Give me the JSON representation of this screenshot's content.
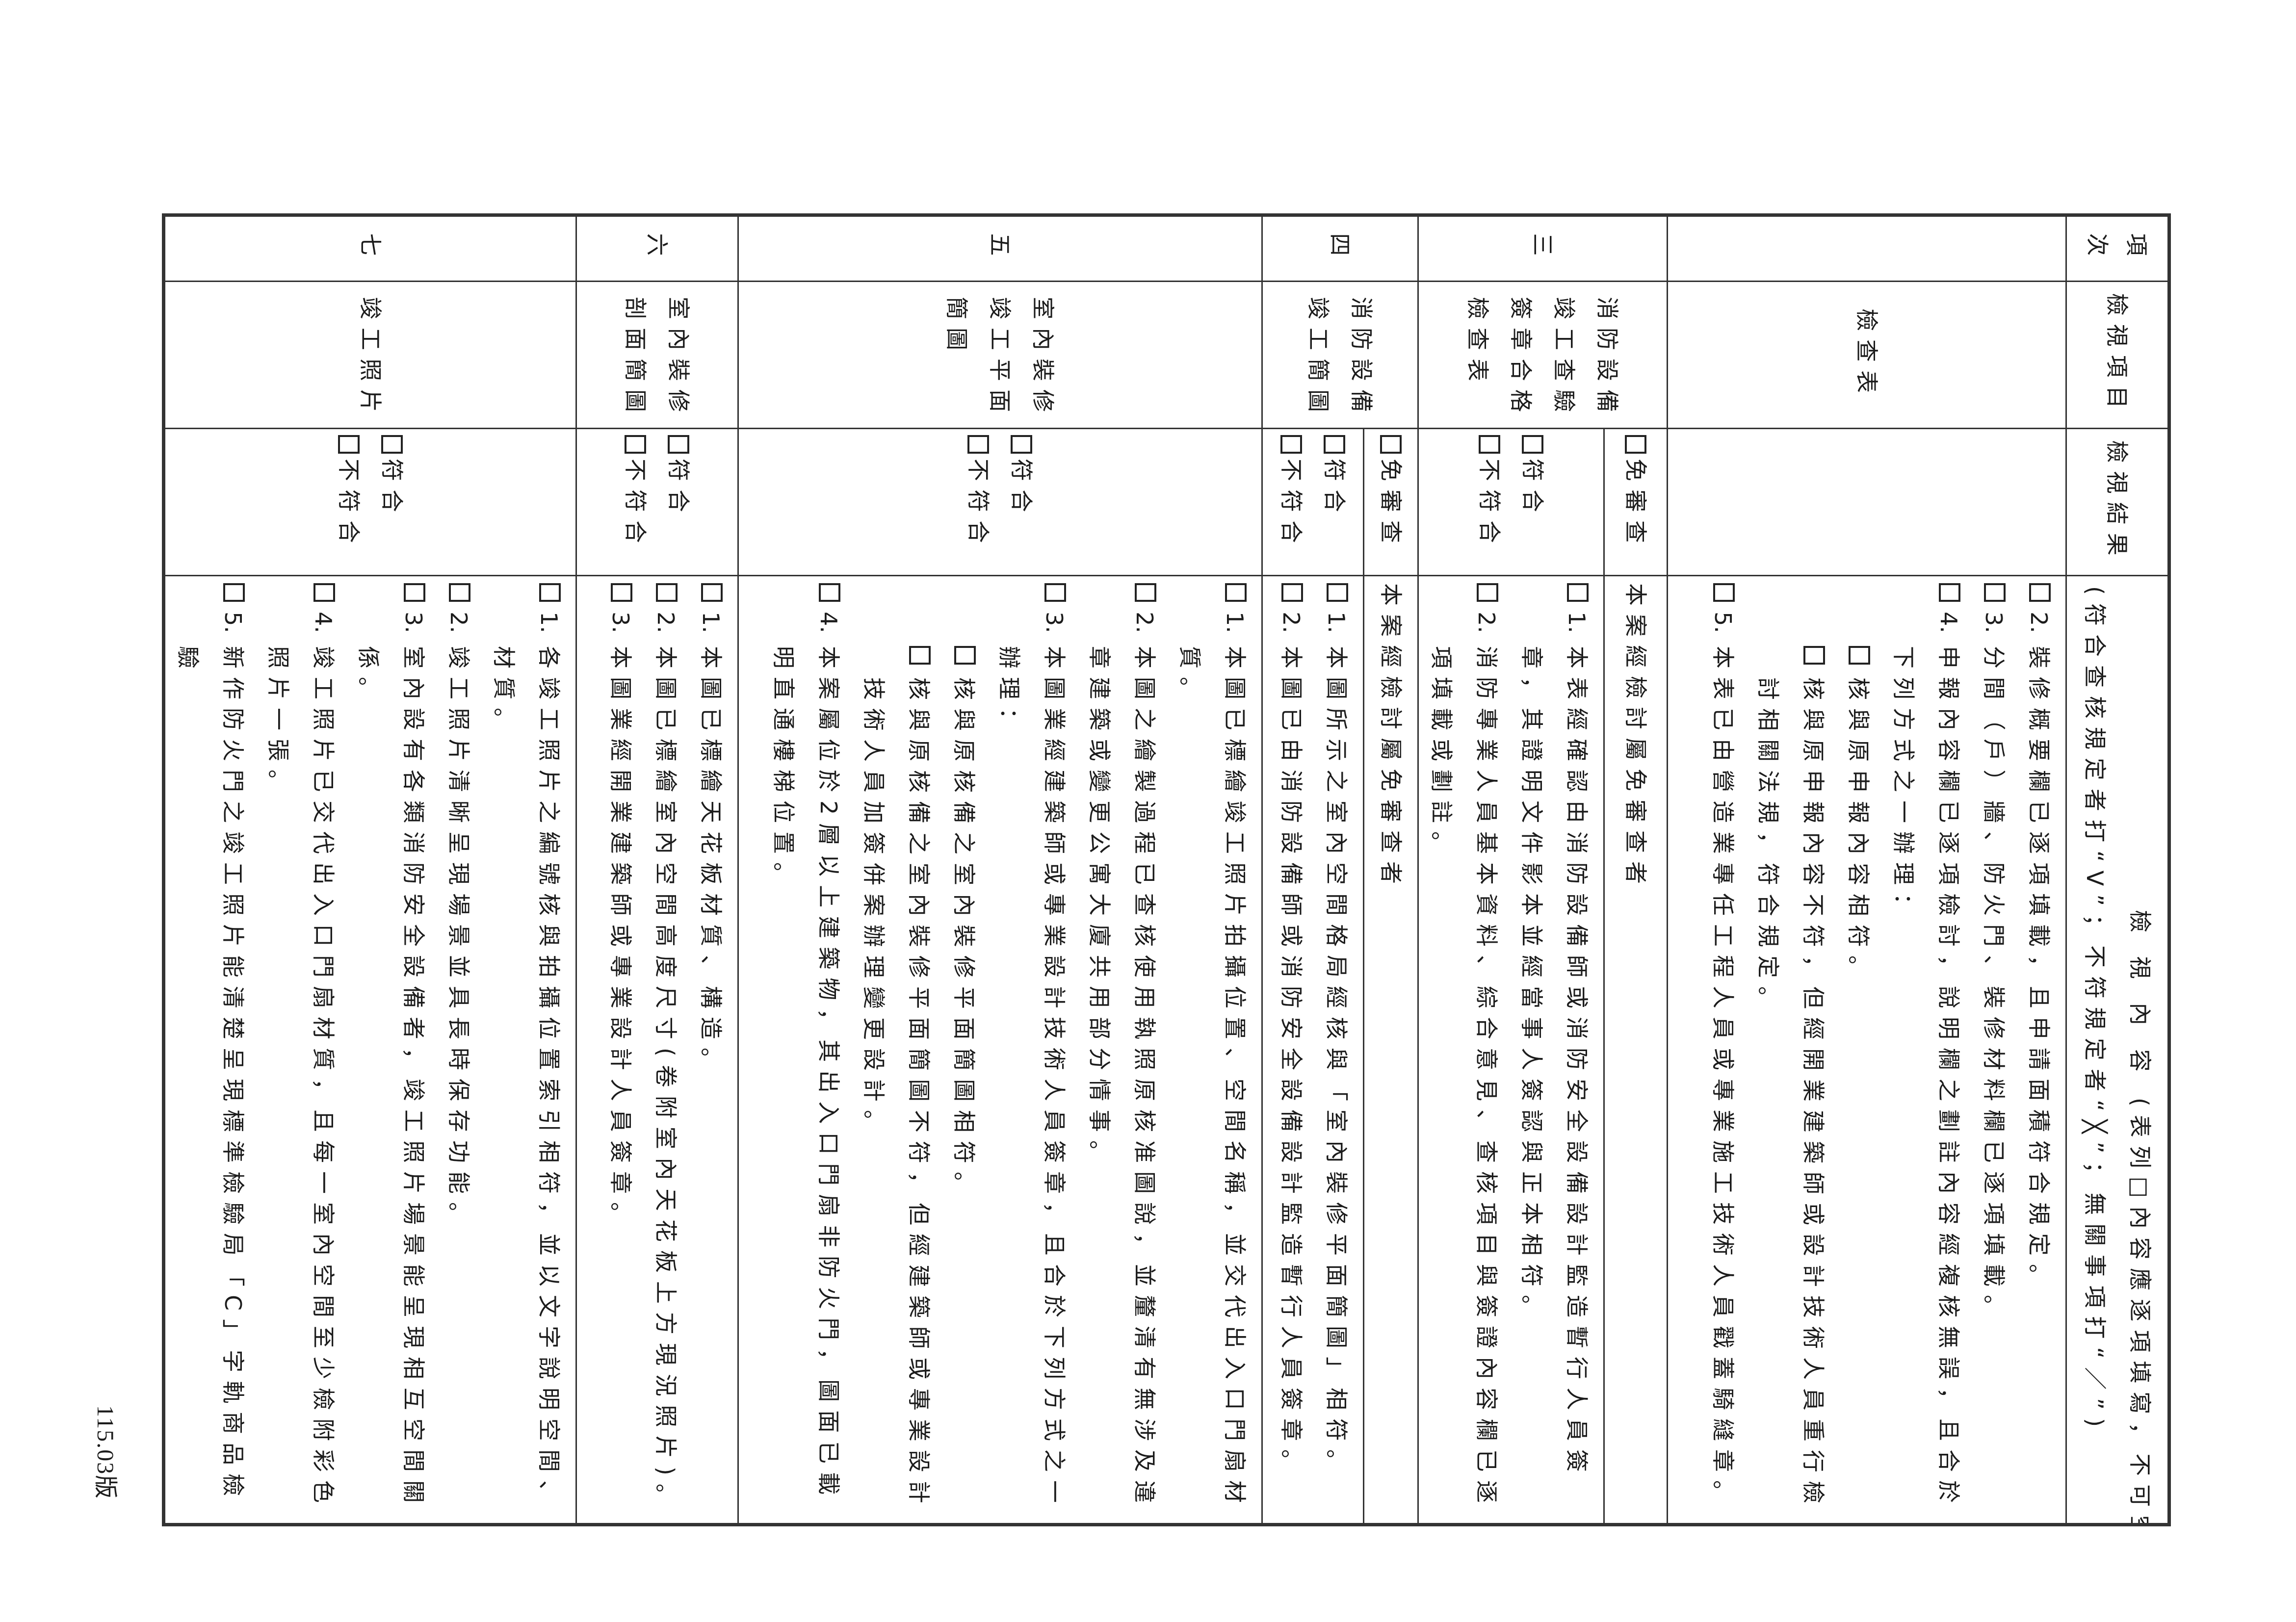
{
  "header": {
    "col_no": [
      "項",
      "次"
    ],
    "col_item": "檢視項目",
    "col_result": "檢視結果",
    "col_content_title": "檢 視 內 容",
    "col_content_note1": "(表列□內容應逐項填寫，不可空白)",
    "col_content_note2": "(符合查核規定者打“V”；不符規定者“╳”；無關事項打“／”)"
  },
  "options": {
    "pass": "符合",
    "fail": "不符合",
    "exempt": "免審查"
  },
  "rows": [
    {
      "no": "",
      "item_lines": [
        "檢查表"
      ],
      "has_result": false,
      "items": [
        {
          "num": "2.",
          "text": "裝修概要欄已逐項填載，且申請面積符合規定。"
        },
        {
          "num": "3.",
          "text": "分間（戶）牆、防火門、裝修材料欄已逐項填載。"
        },
        {
          "num": "4.",
          "text": "申報內容欄已逐項檢討，說明欄之劃註內容經複核無誤，且合於下列方式之一辦理：",
          "subs": [
            {
              "text": "核與原申報內容相符。"
            },
            {
              "text": "核與原申報內容不符，但經開業建築師或設計技術人員重行檢討相關法規，符合規定。"
            }
          ]
        },
        {
          "num": "5.",
          "text": "本表已由營造業專任工程人員或專業施工技術人員戳蓋騎縫章。"
        }
      ]
    },
    {
      "no": "三",
      "item_lines": [
        "消防設備",
        "竣工查驗",
        "簽章合格",
        "檢查表"
      ],
      "has_result": true,
      "exempt_text": "本案經檢討屬免審查者",
      "items": [
        {
          "num": "1.",
          "text": "本表經確認由消防設備師或消防安全設備設計監造暫行人員簽章，其證明文件影本並經當事人簽認與正本相符。"
        },
        {
          "num": "2.",
          "text": "消防專業人員基本資料、綜合意見、查核項目與簽證內容欄已逐項填載或劃註。"
        }
      ]
    },
    {
      "no": "四",
      "item_lines": [
        "消防設備",
        "竣工簡圖"
      ],
      "has_result": true,
      "exempt_text": "本案經檢討屬免審查者",
      "items": [
        {
          "num": "1.",
          "text": "本圖所示之室內空間格局經核與「室內裝修平面簡圖」相符。"
        },
        {
          "num": "2.",
          "text": "本圖已由消防設備師或消防安全設備設計監造暫行人員簽章。"
        }
      ]
    },
    {
      "no": "五",
      "item_lines": [
        "室內裝修",
        "竣工平面",
        "簡圖"
      ],
      "has_result": true,
      "items": [
        {
          "num": "1.",
          "text": "本圖已標繪竣工照片拍攝位置、空間名稱，並交代出入口門扇材質。"
        },
        {
          "num": "2.",
          "text": "本圖之繪製過程已查核使用執照原核准圖說，並釐清有無涉及違章建築或變更公寓大廈共用部分情事。"
        },
        {
          "num": "3.",
          "text": "本圖業經建築師或專業設計技術人員簽章，且合於下列方式之一辦理：",
          "subs": [
            {
              "text": "核與原核備之室內裝修平面簡圖相符。"
            },
            {
              "text": "核與原核備之室內裝修平面簡圖不符，但經建築師或專業設計技術人員加簽併案辦理變更設計。"
            }
          ]
        },
        {
          "num": "4.",
          "text": "本案屬位於2層以上建築物，其出入口門扇非防火門，圖面已載明直通樓梯位置。"
        }
      ]
    },
    {
      "no": "六",
      "item_lines": [
        "室內裝修",
        "剖面簡圖"
      ],
      "has_result": true,
      "items": [
        {
          "num": "1.",
          "text": "本圖已標繪天花板材質、構造。"
        },
        {
          "num": "2.",
          "text": "本圖已標繪室內空間高度尺寸(卷附室內天花板上方現況照片)。"
        },
        {
          "num": "3.",
          "text": "本圖業經開業建築師或專業設計人員簽章。"
        }
      ]
    },
    {
      "no": "七",
      "item_lines": [
        "竣工照片"
      ],
      "has_result": true,
      "items": [
        {
          "num": "1.",
          "text": "各竣工照片之編號核與拍攝位置索引相符，並以文字說明空間、材質。"
        },
        {
          "num": "2.",
          "text": "竣工照片清晰呈現場景並具長時保存功能。"
        },
        {
          "num": "3.",
          "text": "室內設有各類消防安全設備者，竣工照片場景能呈現相互空間關係。"
        },
        {
          "num": "4.",
          "text": "竣工照片已交代出入口門扇材質，且每一室內空間至少檢附彩色照片一張。"
        },
        {
          "num": "5.",
          "text": "新作防火門之竣工照片能清楚呈現標準檢驗局「C」字軌商品檢驗"
        }
      ]
    }
  ],
  "footer": {
    "version": "115.03版"
  }
}
